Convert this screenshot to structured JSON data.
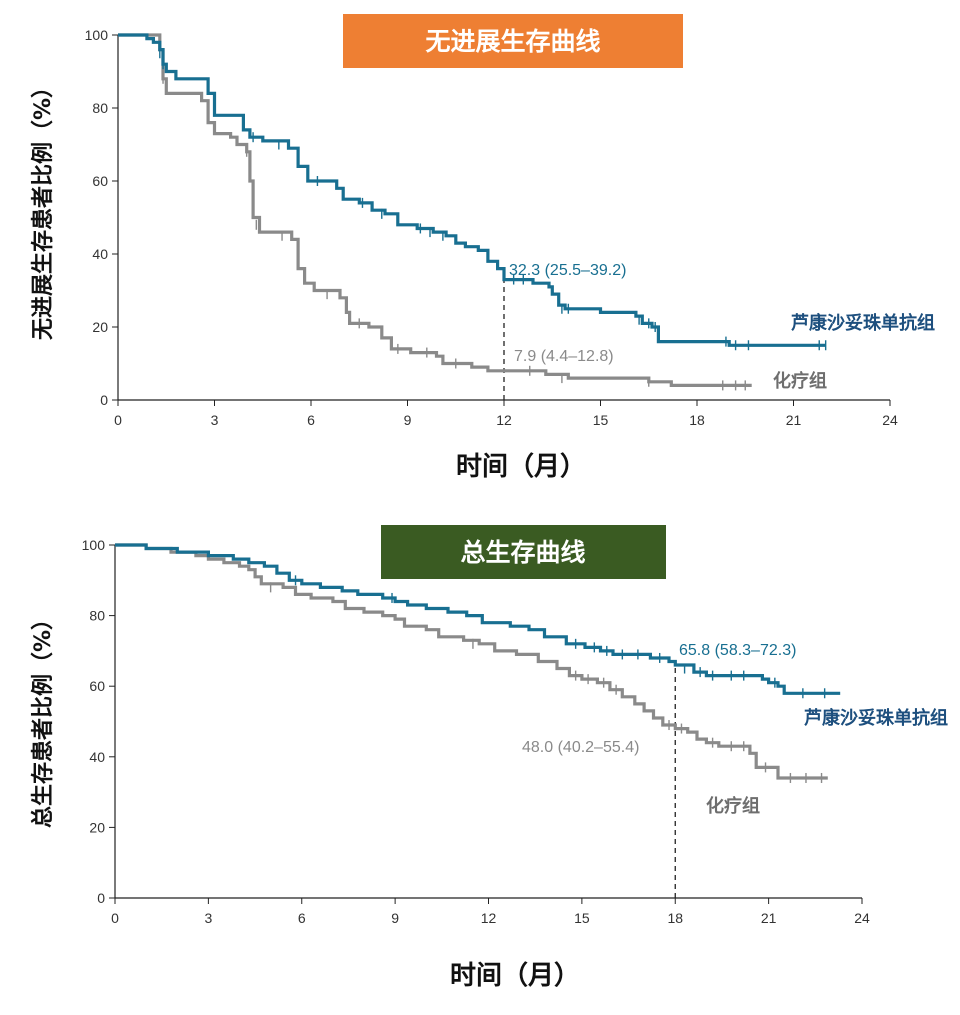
{
  "chart_data": [
    {
      "type": "line",
      "id": "pfs",
      "title": "无进展生存曲线",
      "title_color": "#ee7f33",
      "xlabel": "时间（月）",
      "ylabel": "无进展生存患者比例（%）",
      "xlim": [
        0,
        24
      ],
      "ylim": [
        0,
        100
      ],
      "xticks": [
        0,
        3,
        6,
        9,
        12,
        15,
        18,
        21,
        24
      ],
      "yticks": [
        0,
        20,
        40,
        60,
        80,
        100
      ],
      "marker_x": 12,
      "series": [
        {
          "name": "芦康沙妥珠单抗组",
          "color": "#186f91",
          "label_color": "#1d4f7e",
          "annotation": "32.3 (25.5–39.2)",
          "points": [
            [
              0,
              100
            ],
            [
              0.9,
              99
            ],
            [
              1.1,
              98
            ],
            [
              1.3,
              96
            ],
            [
              1.4,
              92
            ],
            [
              1.5,
              90
            ],
            [
              1.8,
              88
            ],
            [
              2.8,
              84
            ],
            [
              3.0,
              78
            ],
            [
              3.9,
              74
            ],
            [
              4.1,
              72
            ],
            [
              4.5,
              71
            ],
            [
              5.3,
              69
            ],
            [
              5.6,
              64
            ],
            [
              5.9,
              60
            ],
            [
              6.8,
              58
            ],
            [
              7.0,
              55
            ],
            [
              7.5,
              54
            ],
            [
              7.9,
              52
            ],
            [
              8.3,
              51
            ],
            [
              8.7,
              48
            ],
            [
              9.3,
              47
            ],
            [
              9.8,
              46
            ],
            [
              10.0,
              46
            ],
            [
              10.2,
              45
            ],
            [
              10.5,
              43
            ],
            [
              10.8,
              42
            ],
            [
              11.2,
              41
            ],
            [
              11.5,
              38
            ],
            [
              11.8,
              36
            ],
            [
              12.0,
              33
            ],
            [
              12.9,
              32
            ],
            [
              13.4,
              31
            ],
            [
              13.5,
              29
            ],
            [
              13.7,
              26
            ],
            [
              13.9,
              25
            ],
            [
              14.5,
              25
            ],
            [
              15.0,
              24
            ],
            [
              16.0,
              24
            ],
            [
              16.1,
              23
            ],
            [
              16.3,
              21
            ],
            [
              16.6,
              20
            ],
            [
              16.8,
              16
            ],
            [
              18.5,
              16
            ],
            [
              19.0,
              15
            ],
            [
              22.0,
              15
            ]
          ],
          "censors": [
            [
              1.3,
              95
            ],
            [
              1.4,
              92
            ],
            [
              4.2,
              72
            ],
            [
              5.0,
              70
            ],
            [
              6.2,
              60
            ],
            [
              7.6,
              54
            ],
            [
              8.2,
              51
            ],
            [
              9.4,
              47
            ],
            [
              9.7,
              46
            ],
            [
              10.1,
              45
            ],
            [
              12.3,
              33
            ],
            [
              12.6,
              33
            ],
            [
              13.8,
              25
            ],
            [
              14.0,
              25
            ],
            [
              16.2,
              22
            ],
            [
              16.5,
              21
            ],
            [
              16.7,
              20
            ],
            [
              18.9,
              16
            ],
            [
              19.2,
              15
            ],
            [
              19.6,
              15
            ],
            [
              21.8,
              15
            ],
            [
              22.0,
              15
            ]
          ]
        },
        {
          "name": "化疗组",
          "color": "#8a8a8a",
          "label_color": "#6e6e6e",
          "annotation": "7.9 (4.4–12.8)",
          "points": [
            [
              0,
              100
            ],
            [
              1.3,
              96
            ],
            [
              1.4,
              88
            ],
            [
              1.5,
              84
            ],
            [
              2.6,
              82
            ],
            [
              2.8,
              76
            ],
            [
              3.0,
              73
            ],
            [
              3.5,
              72
            ],
            [
              3.7,
              70
            ],
            [
              4.0,
              68
            ],
            [
              4.1,
              60
            ],
            [
              4.2,
              50
            ],
            [
              4.4,
              46
            ],
            [
              5.4,
              44
            ],
            [
              5.6,
              36
            ],
            [
              5.8,
              32
            ],
            [
              6.1,
              30
            ],
            [
              6.9,
              28
            ],
            [
              7.1,
              24
            ],
            [
              7.2,
              21
            ],
            [
              7.8,
              20
            ],
            [
              8.2,
              17
            ],
            [
              8.5,
              14
            ],
            [
              9.1,
              13
            ],
            [
              9.9,
              12
            ],
            [
              10.1,
              10
            ],
            [
              11.0,
              9
            ],
            [
              11.5,
              8
            ],
            [
              12.0,
              8
            ],
            [
              13.3,
              7
            ],
            [
              14.0,
              6
            ],
            [
              16.5,
              5
            ],
            [
              17.2,
              4
            ],
            [
              19.7,
              4
            ]
          ],
          "censors": [
            [
              1.4,
              88
            ],
            [
              4.0,
              68
            ],
            [
              4.3,
              48
            ],
            [
              5.1,
              45
            ],
            [
              6.5,
              29
            ],
            [
              7.5,
              21
            ],
            [
              8.7,
              14
            ],
            [
              9.6,
              13
            ],
            [
              10.5,
              10
            ],
            [
              12.8,
              8
            ],
            [
              13.8,
              6
            ],
            [
              16.5,
              5
            ],
            [
              18.8,
              4
            ],
            [
              19.2,
              4
            ],
            [
              19.5,
              4
            ]
          ]
        }
      ]
    },
    {
      "type": "line",
      "id": "os",
      "title": "总生存曲线",
      "title_color": "#3a5b22",
      "xlabel": "时间（月）",
      "ylabel": "总生存患者比例（%）",
      "xlim": [
        0,
        24
      ],
      "ylim": [
        0,
        100
      ],
      "xticks": [
        0,
        3,
        6,
        9,
        12,
        15,
        18,
        21,
        24
      ],
      "yticks": [
        0,
        20,
        40,
        60,
        80,
        100
      ],
      "marker_x": 18,
      "series": [
        {
          "name": "芦康沙妥珠单抗组",
          "color": "#186f91",
          "label_color": "#1d4f7e",
          "annotation": "65.8 (58.3–72.3)",
          "points": [
            [
              0,
              100
            ],
            [
              1.0,
              99
            ],
            [
              2.0,
              98
            ],
            [
              3.0,
              97
            ],
            [
              3.8,
              96
            ],
            [
              4.3,
              95
            ],
            [
              4.8,
              94
            ],
            [
              5.2,
              92
            ],
            [
              5.6,
              90
            ],
            [
              6.0,
              89
            ],
            [
              6.6,
              88
            ],
            [
              7.3,
              87
            ],
            [
              7.8,
              86
            ],
            [
              8.6,
              85
            ],
            [
              9.0,
              84
            ],
            [
              9.4,
              83
            ],
            [
              10.0,
              82
            ],
            [
              10.7,
              81
            ],
            [
              11.3,
              80
            ],
            [
              11.8,
              78
            ],
            [
              12.7,
              77
            ],
            [
              13.3,
              76
            ],
            [
              13.8,
              74
            ],
            [
              14.5,
              72
            ],
            [
              15.1,
              71
            ],
            [
              15.6,
              70
            ],
            [
              16.0,
              69
            ],
            [
              17.2,
              68
            ],
            [
              17.8,
              67
            ],
            [
              18.0,
              66
            ],
            [
              18.6,
              64
            ],
            [
              19.0,
              63
            ],
            [
              20.6,
              63
            ],
            [
              20.8,
              62
            ],
            [
              21.0,
              61
            ],
            [
              21.3,
              60
            ],
            [
              21.5,
              58
            ],
            [
              23.3,
              58
            ]
          ],
          "censors": [
            [
              5.8,
              90
            ],
            [
              8.9,
              85
            ],
            [
              14.8,
              72
            ],
            [
              15.4,
              71
            ],
            [
              15.8,
              70
            ],
            [
              16.3,
              69
            ],
            [
              16.8,
              69
            ],
            [
              17.5,
              68
            ],
            [
              18.3,
              65
            ],
            [
              18.8,
              64
            ],
            [
              19.2,
              63
            ],
            [
              19.8,
              63
            ],
            [
              20.2,
              63
            ],
            [
              21.2,
              61
            ],
            [
              22.1,
              58
            ],
            [
              22.8,
              58
            ]
          ]
        },
        {
          "name": "化疗组",
          "color": "#8a8a8a",
          "label_color": "#6e6e6e",
          "annotation": "48.0 (40.2–55.4)",
          "points": [
            [
              0,
              100
            ],
            [
              1.0,
              99
            ],
            [
              1.8,
              98
            ],
            [
              2.6,
              97
            ],
            [
              3.0,
              96
            ],
            [
              3.5,
              95
            ],
            [
              4.0,
              94
            ],
            [
              4.3,
              93
            ],
            [
              4.5,
              91
            ],
            [
              4.7,
              89
            ],
            [
              5.4,
              88
            ],
            [
              5.8,
              86
            ],
            [
              6.3,
              85
            ],
            [
              7.0,
              84
            ],
            [
              7.4,
              82
            ],
            [
              8.0,
              81
            ],
            [
              8.6,
              80
            ],
            [
              9.0,
              79
            ],
            [
              9.3,
              77
            ],
            [
              10.0,
              76
            ],
            [
              10.4,
              74
            ],
            [
              11.2,
              73
            ],
            [
              11.7,
              72
            ],
            [
              12.2,
              70
            ],
            [
              12.9,
              69
            ],
            [
              13.6,
              67
            ],
            [
              14.2,
              65
            ],
            [
              14.6,
              63
            ],
            [
              15.0,
              62
            ],
            [
              15.5,
              61
            ],
            [
              15.9,
              59
            ],
            [
              16.3,
              57
            ],
            [
              16.7,
              55
            ],
            [
              17.0,
              53
            ],
            [
              17.3,
              51
            ],
            [
              17.6,
              49
            ],
            [
              18.0,
              48
            ],
            [
              18.4,
              47
            ],
            [
              18.7,
              45
            ],
            [
              19.0,
              44
            ],
            [
              19.4,
              43
            ],
            [
              20.3,
              43
            ],
            [
              20.4,
              41
            ],
            [
              20.6,
              37
            ],
            [
              21.0,
              37
            ],
            [
              21.3,
              34
            ],
            [
              22.9,
              34
            ]
          ],
          "censors": [
            [
              5.0,
              88
            ],
            [
              11.5,
              72
            ],
            [
              14.8,
              63
            ],
            [
              15.2,
              62
            ],
            [
              15.7,
              61
            ],
            [
              16.1,
              59
            ],
            [
              17.8,
              49
            ],
            [
              18.2,
              48
            ],
            [
              19.2,
              44
            ],
            [
              19.8,
              43
            ],
            [
              20.2,
              43
            ],
            [
              20.9,
              37
            ],
            [
              21.7,
              34
            ],
            [
              22.2,
              34
            ],
            [
              22.7,
              34
            ]
          ]
        }
      ]
    }
  ]
}
